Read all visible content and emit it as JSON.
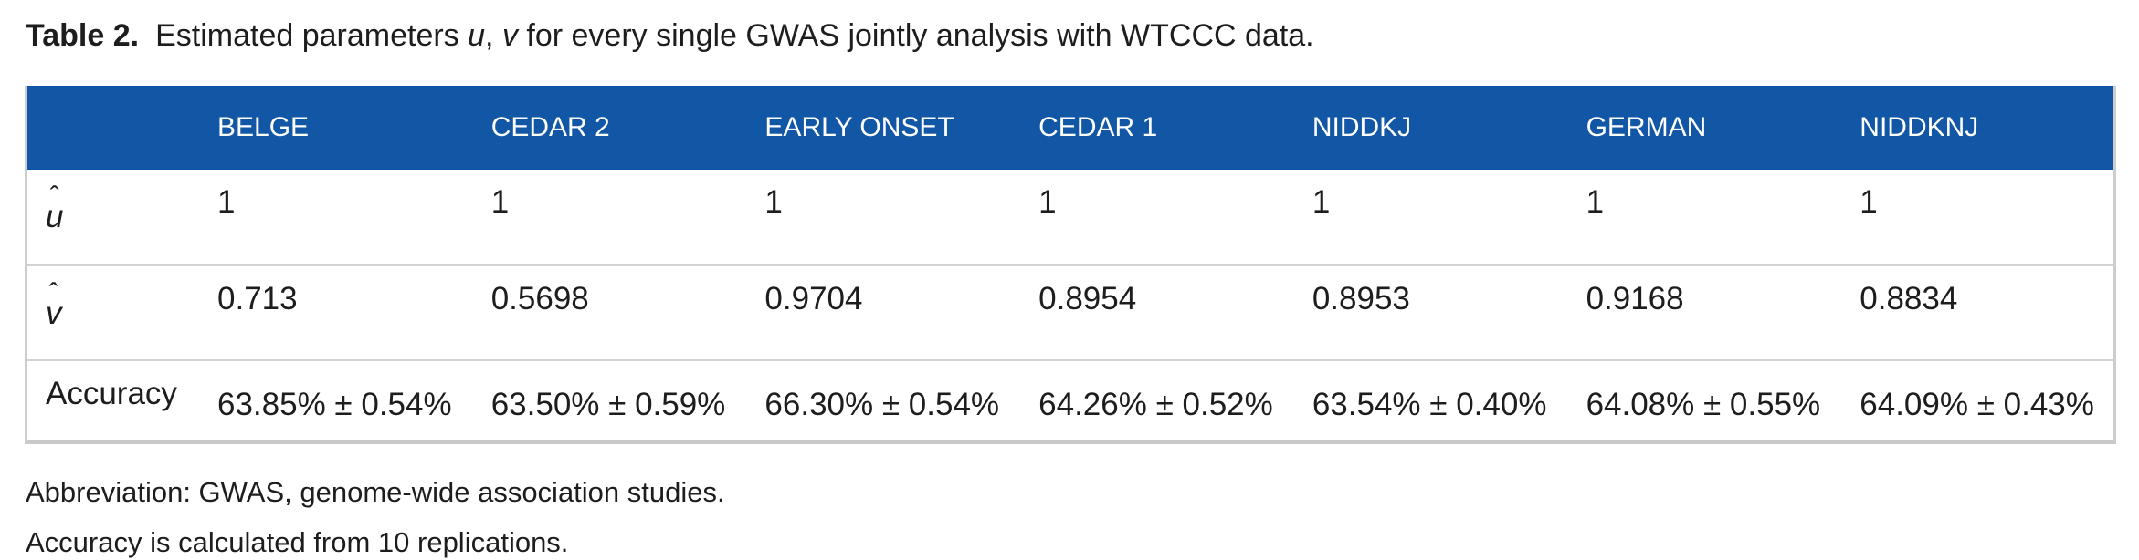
{
  "title": {
    "prefix": "Table 2.",
    "s1": "Estimated parameters ",
    "u": "u",
    "sep": ", ",
    "v": "v",
    "s2": " for every single GWAS jointly analysis with WTCCC data."
  },
  "colors": {
    "header_bg": "#1257a5",
    "header_text": "#ffffff",
    "row_border": "#d2d2d2",
    "body_text": "#1d1d1f"
  },
  "table": {
    "columns": [
      "",
      "BELGE",
      "CEDAR 2",
      "EARLY ONSET",
      "CEDAR 1",
      "NIDDKJ",
      "GERMAN",
      "NIDDKNJ"
    ],
    "rows": [
      {
        "hat": "ˆ",
        "letter": "u",
        "values": [
          "1",
          "1",
          "1",
          "1",
          "1",
          "1",
          "1"
        ]
      },
      {
        "hat": "ˆ",
        "letter": "v",
        "values": [
          "0.713",
          "0.5698",
          "0.9704",
          "0.8954",
          "0.8953",
          "0.9168",
          "0.8834"
        ]
      },
      {
        "label": "Accuracy",
        "values": [
          "63.85% ± 0.54%",
          "63.50% ± 0.59%",
          "66.30% ± 0.54%",
          "64.26% ± 0.52%",
          "63.54% ± 0.40%",
          "64.08% ± 0.55%",
          "64.09% ± 0.43%"
        ]
      }
    ]
  },
  "footnotes": [
    "Abbreviation: GWAS, genome-wide association studies.",
    "Accuracy is calculated from 10 replications."
  ]
}
